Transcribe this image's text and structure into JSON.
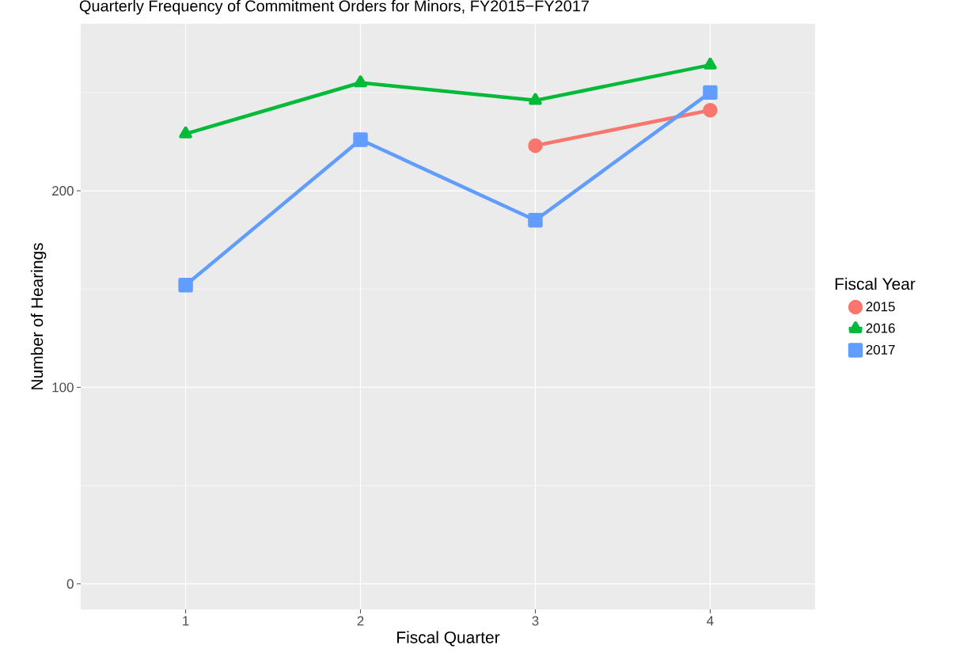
{
  "chart_data": {
    "type": "line",
    "title": "Quarterly Frequency of Commitment Orders for Minors, FY2015−FY2017",
    "xlabel": "Fiscal Quarter",
    "ylabel": "Number of Hearings",
    "legend_title": "Fiscal Year",
    "categories": [
      "1",
      "2",
      "3",
      "4"
    ],
    "series": [
      {
        "name": "2015",
        "color": "#f8766d",
        "marker": "circle",
        "values": [
          null,
          null,
          223,
          241
        ]
      },
      {
        "name": "2016",
        "color": "#00ba38",
        "marker": "triangle",
        "values": [
          229,
          255,
          246,
          264
        ]
      },
      {
        "name": "2017",
        "color": "#619cff",
        "marker": "square",
        "values": [
          152,
          226,
          185,
          250
        ]
      }
    ],
    "ylim": [
      -13,
      285
    ],
    "yticks": [
      0,
      {
        "value": 50,
        "label": null
      },
      100,
      {
        "value": 150,
        "label": null
      },
      200,
      {
        "value": 250,
        "label": null
      }
    ],
    "grid": true,
    "legend": "right",
    "line_style": "solid"
  }
}
